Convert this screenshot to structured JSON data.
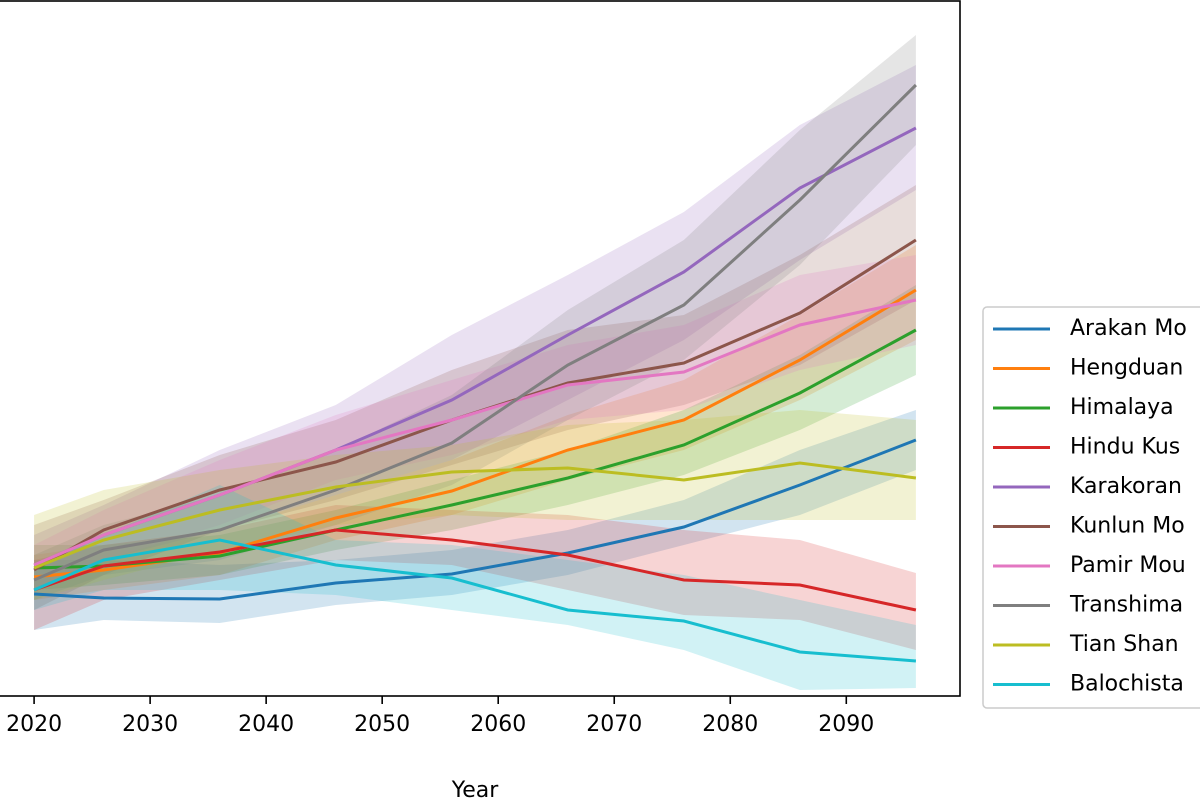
{
  "chart_data": {
    "type": "line",
    "x_label": "Year",
    "x": [
      2020,
      2026,
      2036,
      2046,
      2056,
      2066,
      2076,
      2086,
      2096
    ],
    "xlim": [
      2016.2,
      2099.8
    ],
    "xticks": [
      2020,
      2030,
      2040,
      2050,
      2060,
      2070,
      2080,
      2090
    ],
    "ylim": [
      0,
      695
    ],
    "band_opacity": 0.2,
    "series": [
      {
        "name": "Arakan Mo",
        "color": "#1f77b4",
        "values": [
          102,
          98,
          97,
          113,
          122,
          143,
          169,
          211,
          256
        ],
        "upper": [
          136,
          136,
          131,
          136,
          146,
          166,
          196,
          246,
          286
        ],
        "lower": [
          66,
          76,
          73,
          91,
          101,
          121,
          151,
          181,
          226
        ]
      },
      {
        "name": "Hengduan",
        "color": "#ff7f0e",
        "values": [
          119,
          126,
          143,
          178,
          205,
          246,
          276,
          336,
          406
        ],
        "upper": [
          141,
          151,
          166,
          201,
          236,
          281,
          316,
          381,
          451
        ],
        "lower": [
          96,
          106,
          121,
          156,
          181,
          216,
          246,
          296,
          356
        ]
      },
      {
        "name": "Himalaya",
        "color": "#2ca02c",
        "values": [
          128,
          130,
          140,
          166,
          191,
          218,
          251,
          303,
          366
        ],
        "upper": [
          151,
          151,
          161,
          186,
          216,
          246,
          286,
          341,
          411
        ],
        "lower": [
          106,
          111,
          121,
          146,
          166,
          191,
          221,
          266,
          321
        ]
      },
      {
        "name": "Hindu Kus",
        "color": "#d62728",
        "values": [
          106,
          130,
          144,
          166,
          156,
          141,
          116,
          111,
          86
        ],
        "upper": [
          136,
          151,
          166,
          191,
          186,
          181,
          166,
          156,
          123
        ],
        "lower": [
          66,
          96,
          116,
          136,
          131,
          106,
          81,
          76,
          46
        ]
      },
      {
        "name": "Karakoran",
        "color": "#9467bd",
        "values": [
          131,
          161,
          201,
          246,
          296,
          361,
          424,
          508,
          568
        ],
        "upper": [
          161,
          191,
          246,
          291,
          361,
          421,
          484,
          571,
          631
        ],
        "lower": [
          106,
          136,
          166,
          201,
          236,
          296,
          356,
          436,
          506
        ]
      },
      {
        "name": "Kunlun Mo",
        "color": "#8c564b",
        "values": [
          126,
          166,
          206,
          234,
          276,
          313,
          333,
          383,
          456
        ],
        "upper": [
          171,
          196,
          241,
          276,
          326,
          366,
          381,
          441,
          511
        ],
        "lower": [
          86,
          121,
          166,
          196,
          231,
          266,
          291,
          331,
          396
        ]
      },
      {
        "name": "Pamir Mou",
        "color": "#e377c2",
        "values": [
          131,
          161,
          201,
          246,
          276,
          311,
          324,
          371,
          396
        ],
        "upper": [
          151,
          186,
          236,
          281,
          316,
          351,
          371,
          421,
          441
        ],
        "lower": [
          106,
          136,
          171,
          216,
          241,
          276,
          286,
          326,
          351
        ]
      },
      {
        "name": "Transhima",
        "color": "#7f7f7f",
        "values": [
          116,
          146,
          166,
          206,
          253,
          331,
          391,
          496,
          611
        ],
        "upper": [
          141,
          171,
          201,
          246,
          301,
          386,
          456,
          566,
          661
        ],
        "lower": [
          96,
          121,
          136,
          171,
          211,
          276,
          336,
          431,
          551
        ]
      },
      {
        "name": "Tian Shan",
        "color": "#bcbd22",
        "values": [
          128,
          156,
          186,
          209,
          224,
          228,
          216,
          233,
          218
        ],
        "upper": [
          181,
          206,
          226,
          241,
          251,
          271,
          276,
          286,
          276
        ],
        "lower": [
          96,
          116,
          146,
          171,
          181,
          176,
          176,
          176,
          176
        ]
      },
      {
        "name": "Balochista",
        "color": "#17becf",
        "values": [
          106,
          136,
          156,
          131,
          118,
          86,
          75,
          44,
          35
        ],
        "upper": [
          131,
          161,
          211,
          156,
          151,
          136,
          121,
          96,
          71
        ],
        "lower": [
          86,
          106,
          106,
          101,
          86,
          71,
          46,
          6,
          8
        ]
      }
    ]
  }
}
